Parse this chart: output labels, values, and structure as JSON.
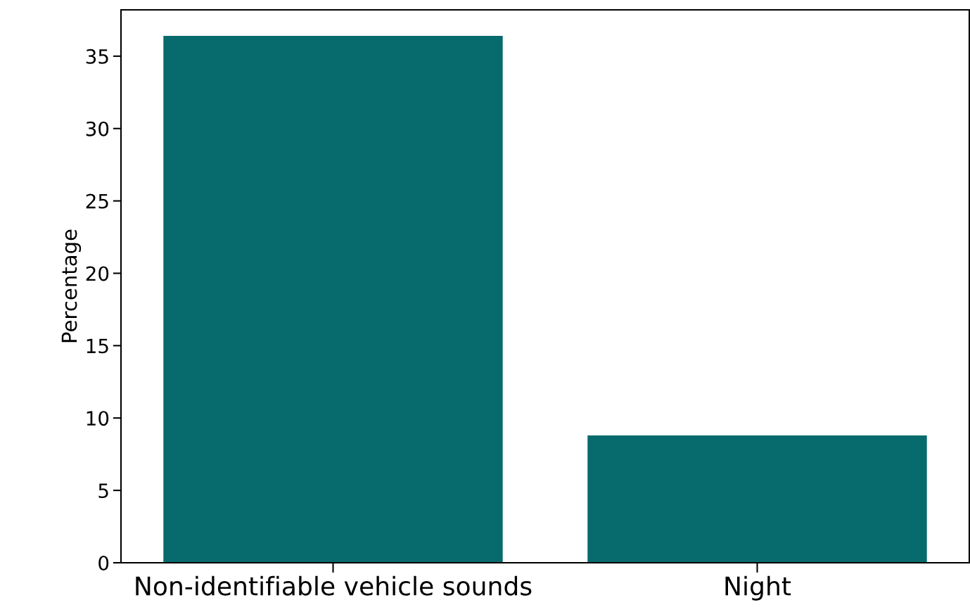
{
  "chart_data": {
    "type": "bar",
    "ylabel": "Percentage",
    "categories": [
      "Non-identifiable vehicle sounds",
      "Night"
    ],
    "values": [
      36.4,
      8.8
    ],
    "color": "#076a6c",
    "ylim": [
      0,
      38.2
    ],
    "yticks": [
      0,
      5,
      10,
      15,
      20,
      25,
      30,
      35
    ],
    "grid": false,
    "legend": false
  }
}
